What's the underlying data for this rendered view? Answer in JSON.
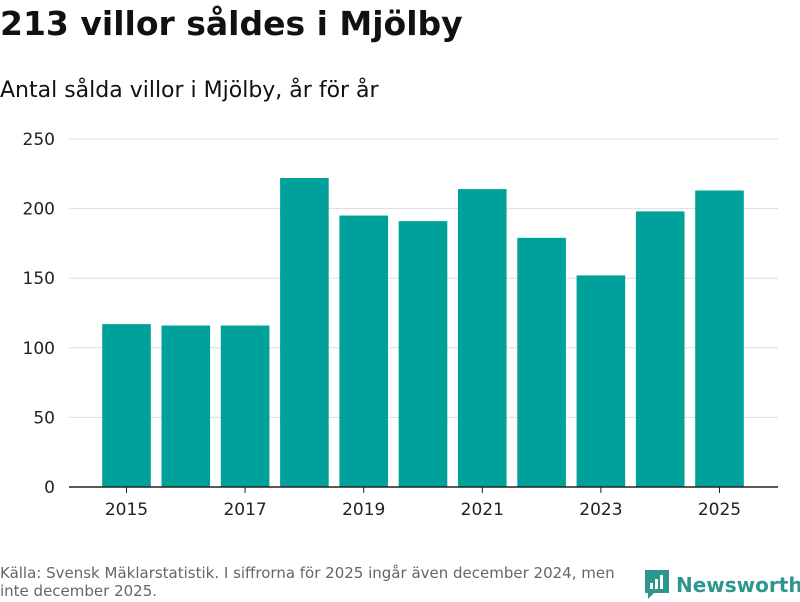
{
  "header": {
    "title": "213 villor såldes i Mjölby",
    "subtitle": "Antal sålda villor i Mjölby, år för år"
  },
  "chart_data": {
    "type": "bar",
    "title": "213 villor såldes i Mjölby",
    "subtitle": "Antal sålda villor i Mjölby, år för år",
    "xlabel": "",
    "ylabel": "",
    "categories": [
      "2015",
      "2016",
      "2017",
      "2018",
      "2019",
      "2020",
      "2021",
      "2022",
      "2023",
      "2024",
      "2025"
    ],
    "values": [
      117,
      116,
      116,
      222,
      195,
      191,
      214,
      179,
      152,
      198,
      213
    ],
    "ylim": [
      0,
      250
    ],
    "yticks": [
      0,
      50,
      100,
      150,
      200,
      250
    ],
    "xticks": [
      "2015",
      "2017",
      "2019",
      "2021",
      "2023",
      "2025"
    ],
    "bar_color": "#00a19a",
    "grid": true
  },
  "footer": {
    "source": "Källa: Svensk Mäklarstatistik. I siffrorna för 2025 ingår även december 2024, men inte december 2025.",
    "brand": "Newsworthy",
    "brand_icon": "newsworthy-logo-icon",
    "brand_color": "#2e9690"
  }
}
